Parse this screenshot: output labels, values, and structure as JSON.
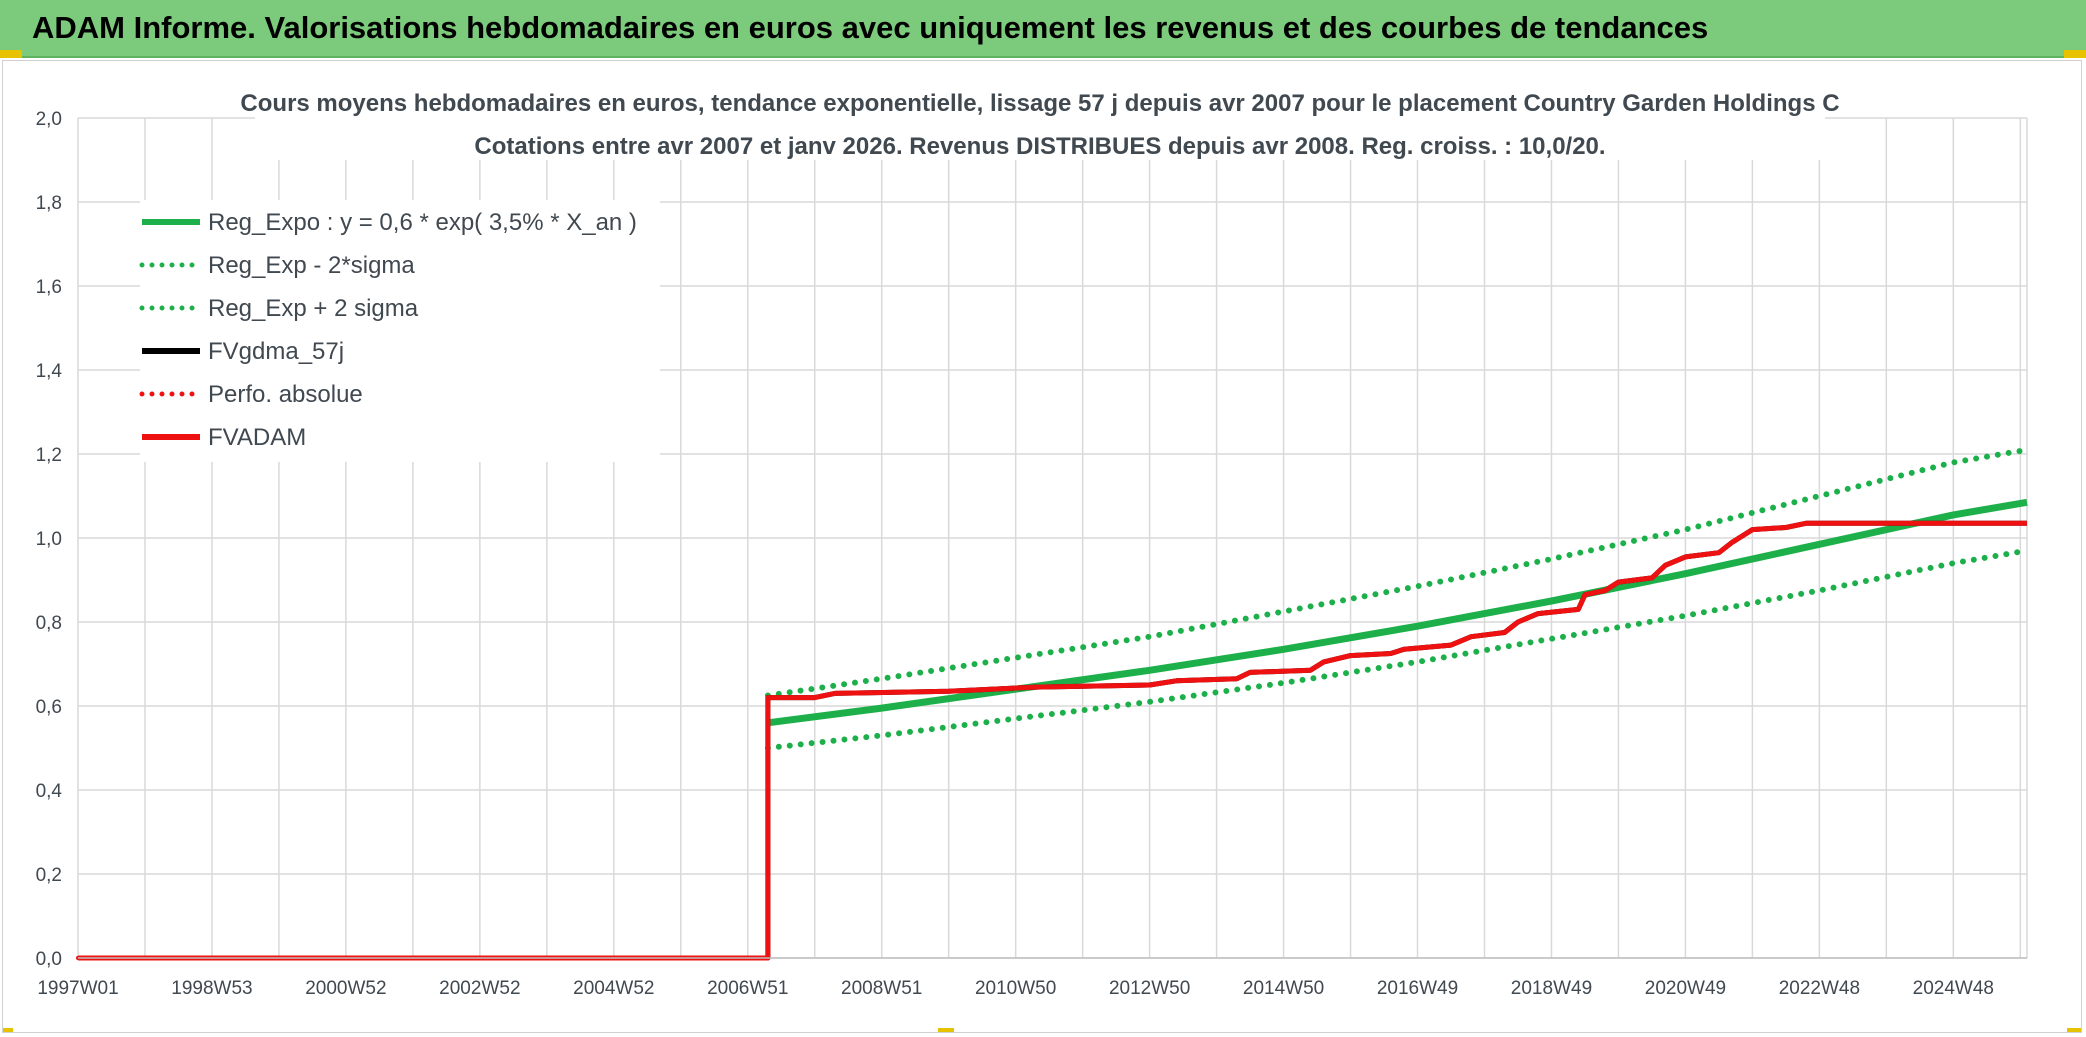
{
  "banner": {
    "title": "ADAM Informe. Valorisations hebdomadaires en euros avec uniquement les revenus et des courbes de tendances"
  },
  "colors": {
    "banner_bg": "#7ccb7c",
    "green": "#1db04a",
    "red": "#ee1111",
    "black": "#000000",
    "grid": "#d9d9d9"
  },
  "chart_data": {
    "type": "line",
    "title_line1": "Cours moyens hebdomadaires en euros, tendance exponentielle, lissage 57 j depuis avr 2007 pour le placement Country Garden Holdings C",
    "title_line2": "Cotations entre avr 2007 et janv 2026. Revenus DISTRIBUES depuis avr 2008. Reg. croiss. : 10,0/20.",
    "xlabel": "",
    "ylabel": "",
    "ylim": [
      0,
      2.0
    ],
    "xlim": [
      1997.0,
      2026.1
    ],
    "y_ticks": [
      "0,0",
      "0,2",
      "0,4",
      "0,6",
      "0,8",
      "1,0",
      "1,2",
      "1,4",
      "1,6",
      "1,8",
      "2,0"
    ],
    "x_ticks": [
      {
        "label": "1997W01",
        "x": 1997.0
      },
      {
        "label": "1998W53",
        "x": 1999.0
      },
      {
        "label": "2000W52",
        "x": 2001.0
      },
      {
        "label": "2002W52",
        "x": 2003.0
      },
      {
        "label": "2004W52",
        "x": 2005.0
      },
      {
        "label": "2006W51",
        "x": 2007.0
      },
      {
        "label": "2008W51",
        "x": 2009.0
      },
      {
        "label": "2010W50",
        "x": 2011.0
      },
      {
        "label": "2012W50",
        "x": 2013.0
      },
      {
        "label": "2014W50",
        "x": 2015.0
      },
      {
        "label": "2016W49",
        "x": 2017.0
      },
      {
        "label": "2018W49",
        "x": 2019.0
      },
      {
        "label": "2020W49",
        "x": 2021.0
      },
      {
        "label": "2022W48",
        "x": 2023.0
      },
      {
        "label": "2024W48",
        "x": 2025.0
      }
    ],
    "grid": true,
    "legend_position": "top-left",
    "series": [
      {
        "name": "Reg_Expo : y = 0,6 * exp( 3,5% *  X_an )",
        "color": "#1db04a",
        "style": "solid",
        "points": [
          [
            2007.3,
            0.56
          ],
          [
            2009.0,
            0.595
          ],
          [
            2011.0,
            0.64
          ],
          [
            2013.0,
            0.685
          ],
          [
            2015.0,
            0.735
          ],
          [
            2017.0,
            0.79
          ],
          [
            2019.0,
            0.85
          ],
          [
            2021.0,
            0.915
          ],
          [
            2023.0,
            0.985
          ],
          [
            2025.0,
            1.055
          ],
          [
            2026.1,
            1.085
          ]
        ]
      },
      {
        "name": "Reg_Exp - 2*sigma",
        "color": "#1db04a",
        "style": "dotted",
        "points": [
          [
            2007.3,
            0.5
          ],
          [
            2009.0,
            0.53
          ],
          [
            2011.0,
            0.57
          ],
          [
            2013.0,
            0.61
          ],
          [
            2015.0,
            0.655
          ],
          [
            2017.0,
            0.705
          ],
          [
            2019.0,
            0.76
          ],
          [
            2021.0,
            0.815
          ],
          [
            2023.0,
            0.875
          ],
          [
            2025.0,
            0.94
          ],
          [
            2026.1,
            0.97
          ]
        ]
      },
      {
        "name": "Reg_Exp + 2 sigma",
        "color": "#1db04a",
        "style": "dotted",
        "points": [
          [
            2007.3,
            0.625
          ],
          [
            2009.0,
            0.665
          ],
          [
            2011.0,
            0.715
          ],
          [
            2013.0,
            0.765
          ],
          [
            2015.0,
            0.825
          ],
          [
            2017.0,
            0.885
          ],
          [
            2019.0,
            0.95
          ],
          [
            2021.0,
            1.02
          ],
          [
            2023.0,
            1.1
          ],
          [
            2025.0,
            1.18
          ],
          [
            2026.1,
            1.21
          ]
        ]
      },
      {
        "name": "FVgdma_57j",
        "color": "#000000",
        "style": "solid",
        "points": [
          [
            1997.0,
            0.0
          ],
          [
            2007.3,
            0.0
          ],
          [
            2007.3,
            0.62
          ],
          [
            2008.0,
            0.62
          ],
          [
            2008.3,
            0.63
          ],
          [
            2010.0,
            0.635
          ],
          [
            2011.3,
            0.645
          ],
          [
            2013.0,
            0.65
          ],
          [
            2013.4,
            0.66
          ],
          [
            2014.3,
            0.665
          ],
          [
            2014.5,
            0.68
          ],
          [
            2015.4,
            0.685
          ],
          [
            2015.6,
            0.705
          ],
          [
            2016.0,
            0.72
          ],
          [
            2016.6,
            0.725
          ],
          [
            2016.8,
            0.735
          ],
          [
            2017.5,
            0.745
          ],
          [
            2017.8,
            0.765
          ],
          [
            2018.3,
            0.775
          ],
          [
            2018.5,
            0.8
          ],
          [
            2018.8,
            0.82
          ],
          [
            2019.4,
            0.83
          ],
          [
            2019.5,
            0.865
          ],
          [
            2019.8,
            0.875
          ],
          [
            2020.0,
            0.895
          ],
          [
            2020.5,
            0.905
          ],
          [
            2020.7,
            0.935
          ],
          [
            2021.0,
            0.955
          ],
          [
            2021.5,
            0.965
          ],
          [
            2021.7,
            0.99
          ],
          [
            2022.0,
            1.02
          ],
          [
            2022.5,
            1.025
          ],
          [
            2022.8,
            1.035
          ],
          [
            2026.1,
            1.035
          ]
        ]
      },
      {
        "name": "Perfo. absolue",
        "color": "#ee1111",
        "style": "dotted",
        "points": [
          [
            1997.0,
            0.0
          ],
          [
            2007.3,
            0.0
          ],
          [
            2007.3,
            0.62
          ],
          [
            2008.0,
            0.62
          ],
          [
            2008.3,
            0.63
          ],
          [
            2010.0,
            0.635
          ],
          [
            2011.3,
            0.645
          ],
          [
            2013.0,
            0.65
          ],
          [
            2013.4,
            0.66
          ],
          [
            2014.3,
            0.665
          ],
          [
            2014.5,
            0.68
          ],
          [
            2015.4,
            0.685
          ],
          [
            2015.6,
            0.705
          ],
          [
            2016.0,
            0.72
          ],
          [
            2016.6,
            0.725
          ],
          [
            2016.8,
            0.735
          ],
          [
            2017.5,
            0.745
          ],
          [
            2017.8,
            0.765
          ],
          [
            2018.3,
            0.775
          ],
          [
            2018.5,
            0.8
          ],
          [
            2018.8,
            0.82
          ],
          [
            2019.4,
            0.83
          ],
          [
            2019.5,
            0.865
          ],
          [
            2019.8,
            0.875
          ],
          [
            2020.0,
            0.895
          ],
          [
            2020.5,
            0.905
          ],
          [
            2020.7,
            0.935
          ],
          [
            2021.0,
            0.955
          ],
          [
            2021.5,
            0.965
          ],
          [
            2021.7,
            0.99
          ],
          [
            2022.0,
            1.02
          ],
          [
            2022.5,
            1.025
          ],
          [
            2022.8,
            1.035
          ],
          [
            2026.1,
            1.035
          ]
        ]
      },
      {
        "name": "FVADAM",
        "color": "#ee1111",
        "style": "solid",
        "points": [
          [
            1997.0,
            0.0
          ],
          [
            2007.3,
            0.0
          ],
          [
            2007.3,
            0.62
          ],
          [
            2008.0,
            0.62
          ],
          [
            2008.3,
            0.63
          ],
          [
            2010.0,
            0.635
          ],
          [
            2011.3,
            0.645
          ],
          [
            2013.0,
            0.65
          ],
          [
            2013.4,
            0.66
          ],
          [
            2014.3,
            0.665
          ],
          [
            2014.5,
            0.68
          ],
          [
            2015.4,
            0.685
          ],
          [
            2015.6,
            0.705
          ],
          [
            2016.0,
            0.72
          ],
          [
            2016.6,
            0.725
          ],
          [
            2016.8,
            0.735
          ],
          [
            2017.5,
            0.745
          ],
          [
            2017.8,
            0.765
          ],
          [
            2018.3,
            0.775
          ],
          [
            2018.5,
            0.8
          ],
          [
            2018.8,
            0.82
          ],
          [
            2019.4,
            0.83
          ],
          [
            2019.5,
            0.865
          ],
          [
            2019.8,
            0.875
          ],
          [
            2020.0,
            0.895
          ],
          [
            2020.5,
            0.905
          ],
          [
            2020.7,
            0.935
          ],
          [
            2021.0,
            0.955
          ],
          [
            2021.5,
            0.965
          ],
          [
            2021.7,
            0.99
          ],
          [
            2022.0,
            1.02
          ],
          [
            2022.5,
            1.025
          ],
          [
            2022.8,
            1.035
          ],
          [
            2026.1,
            1.035
          ]
        ]
      }
    ]
  }
}
